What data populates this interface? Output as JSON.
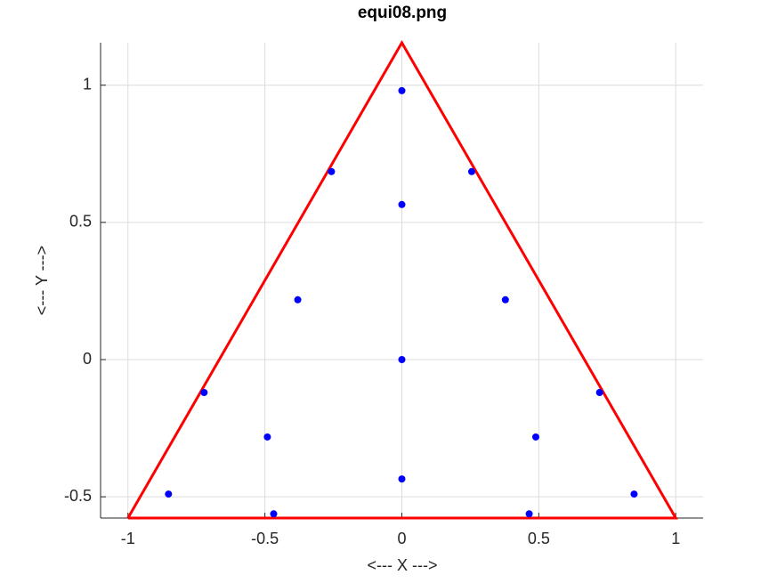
{
  "chart_data": {
    "type": "scatter",
    "title": "equi08.png",
    "xlabel": "<--- X --->",
    "ylabel": "<--- Y --->",
    "xlim": [
      -1.1,
      1.1
    ],
    "ylim": [
      -0.57735,
      1.1547
    ],
    "xticks": [
      -1,
      -0.5,
      0,
      0.5,
      1
    ],
    "yticks": [
      -0.5,
      0,
      0.5,
      1
    ],
    "grid": true,
    "series": [
      {
        "type": "line",
        "color": "#ff0000",
        "x": [
          -1,
          1,
          0,
          -1
        ],
        "y": [
          -0.57735,
          -0.57735,
          1.1547,
          -0.57735
        ]
      },
      {
        "type": "scatter",
        "color": "#0000ff",
        "x": [
          0,
          -0.257,
          0.255,
          0,
          -0.38,
          0.378,
          0,
          -0.722,
          0.722,
          -0.491,
          0.489,
          0,
          -0.852,
          0.848,
          -0.468,
          0.465
        ],
        "y": [
          0.98,
          0.685,
          0.685,
          0.565,
          0.218,
          0.218,
          0,
          -0.12,
          -0.12,
          -0.282,
          -0.282,
          -0.435,
          -0.49,
          -0.49,
          -0.562,
          -0.562
        ]
      }
    ]
  }
}
